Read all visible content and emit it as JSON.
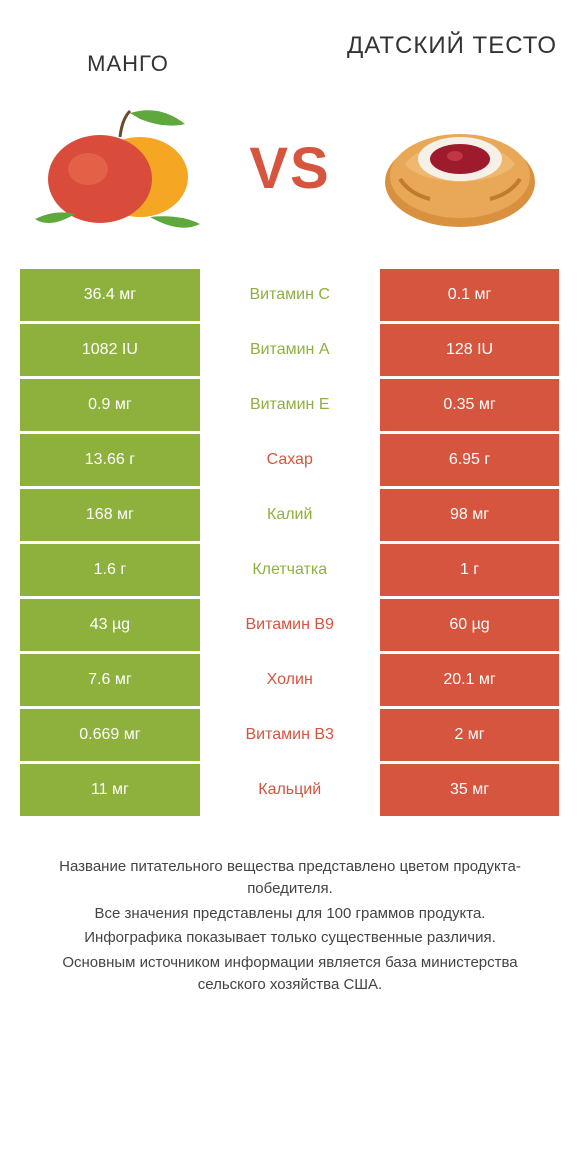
{
  "titles": {
    "left": "Mанго",
    "right": "Датский тесто"
  },
  "vs": "VS",
  "colors": {
    "left_bg": "#8eb13e",
    "right_bg": "#d6553e",
    "left_text": "#8eb13e",
    "right_text": "#d6553e",
    "white": "#ffffff"
  },
  "rows": [
    {
      "left": "36.4 мг",
      "mid": "Витамин C",
      "right": "0.1 мг",
      "winner": "left"
    },
    {
      "left": "1082 IU",
      "mid": "Витамин A",
      "right": "128 IU",
      "winner": "left"
    },
    {
      "left": "0.9 мг",
      "mid": "Витамин E",
      "right": "0.35 мг",
      "winner": "left"
    },
    {
      "left": "13.66 г",
      "mid": "Сахар",
      "right": "6.95 г",
      "winner": "right"
    },
    {
      "left": "168 мг",
      "mid": "Калий",
      "right": "98 мг",
      "winner": "left"
    },
    {
      "left": "1.6 г",
      "mid": "Клетчатка",
      "right": "1 г",
      "winner": "left"
    },
    {
      "left": "43 µg",
      "mid": "Витамин B9",
      "right": "60 µg",
      "winner": "right"
    },
    {
      "left": "7.6 мг",
      "mid": "Холин",
      "right": "20.1 мг",
      "winner": "right"
    },
    {
      "left": "0.669 мг",
      "mid": "Витамин B3",
      "right": "2 мг",
      "winner": "right"
    },
    {
      "left": "11 мг",
      "mid": "Кальций",
      "right": "35 мг",
      "winner": "right"
    }
  ],
  "footer": [
    "Название питательного вещества представлено цветом продукта-победителя.",
    "Все значения представлены для 100 граммов продукта.",
    "Инфографика показывает только существенные различия.",
    "Основным источником информации является база министерства сельского хозяйства США."
  ]
}
